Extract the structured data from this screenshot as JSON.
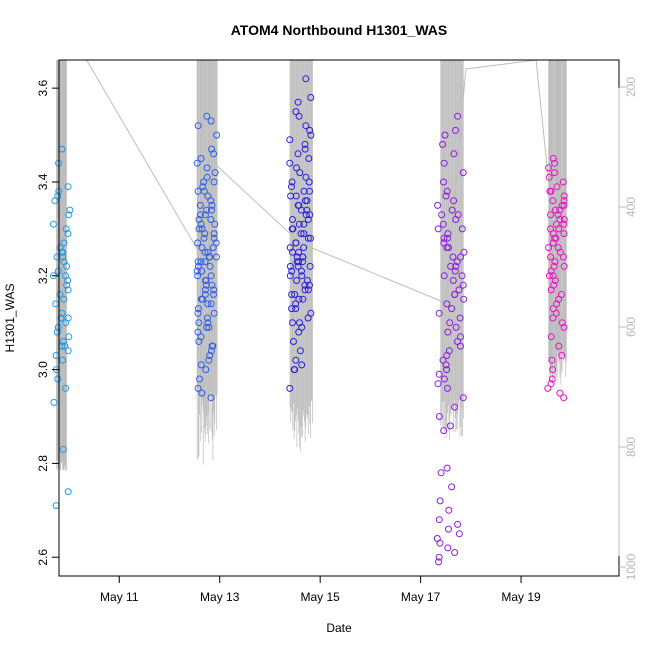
{
  "chart_data": {
    "type": "scatter",
    "title": "ATOM4 Northbound H1301_WAS",
    "xlabel": "Date",
    "ylabel": "H1301_WAS",
    "x_ticks": [
      "May 11",
      "May 13",
      "May 15",
      "May 17",
      "May 19"
    ],
    "x_tick_positions": [
      11,
      13,
      15,
      17,
      19
    ],
    "xlim": [
      9.8,
      20.95
    ],
    "ylim": [
      2.56,
      3.66
    ],
    "y_ticks": [
      "2.6",
      "2.8",
      "3.0",
      "3.2",
      "3.4",
      "3.6"
    ],
    "y_tick_values": [
      2.6,
      2.8,
      3.0,
      3.2,
      3.4,
      3.6
    ],
    "right_axis": {
      "ticks": [
        "200",
        "400",
        "600",
        "800",
        "1000"
      ],
      "tick_values": [
        200,
        400,
        600,
        800,
        1000
      ],
      "lim": [
        1015,
        155
      ],
      "reversed": true,
      "color": "#bbbbbb"
    },
    "grid": false,
    "colors": {
      "cluster1": "#1e9be6",
      "cluster2": "#2f5fe6",
      "cluster3": "#2b1fe0",
      "cluster4": "#8a1ee0",
      "cluster5": "#ee10c8",
      "altitude": "#bdbdbd"
    },
    "series": [
      {
        "color_key": "cluster1",
        "x_center": 9.85,
        "x_spread": 0.17,
        "values": [
          3.47,
          3.44,
          3.39,
          3.38,
          3.37,
          3.36,
          3.34,
          3.33,
          3.31,
          3.3,
          3.29,
          3.27,
          3.26,
          3.25,
          3.25,
          3.24,
          3.24,
          3.23,
          3.22,
          3.21,
          3.2,
          3.2,
          3.19,
          3.18,
          3.17,
          3.16,
          3.15,
          3.14,
          3.12,
          3.11,
          3.11,
          3.1,
          3.09,
          3.08,
          3.07,
          3.06,
          3.05,
          3.05,
          3.04,
          3.03,
          3.02,
          3.0,
          2.98,
          2.96,
          2.93,
          2.83,
          2.74,
          2.71
        ]
      },
      {
        "color_key": "cluster2",
        "x_center": 12.75,
        "x_spread": 0.2,
        "values": [
          3.54,
          3.53,
          3.52,
          3.5,
          3.47,
          3.46,
          3.45,
          3.44,
          3.43,
          3.42,
          3.41,
          3.4,
          3.4,
          3.39,
          3.38,
          3.38,
          3.37,
          3.36,
          3.35,
          3.35,
          3.34,
          3.34,
          3.33,
          3.33,
          3.32,
          3.32,
          3.31,
          3.31,
          3.3,
          3.3,
          3.29,
          3.29,
          3.28,
          3.28,
          3.27,
          3.27,
          3.26,
          3.26,
          3.25,
          3.25,
          3.24,
          3.24,
          3.24,
          3.23,
          3.23,
          3.23,
          3.22,
          3.22,
          3.21,
          3.21,
          3.2,
          3.2,
          3.19,
          3.19,
          3.18,
          3.18,
          3.17,
          3.17,
          3.16,
          3.16,
          3.15,
          3.15,
          3.14,
          3.14,
          3.13,
          3.12,
          3.12,
          3.11,
          3.1,
          3.1,
          3.09,
          3.09,
          3.08,
          3.07,
          3.06,
          3.05,
          3.05,
          3.04,
          3.03,
          3.02,
          3.01,
          3.0,
          2.98,
          2.96,
          2.95,
          2.94
        ]
      },
      {
        "color_key": "cluster3",
        "x_center": 14.6,
        "x_spread": 0.22,
        "values": [
          3.62,
          3.58,
          3.57,
          3.55,
          3.54,
          3.52,
          3.51,
          3.5,
          3.49,
          3.48,
          3.47,
          3.46,
          3.45,
          3.44,
          3.43,
          3.42,
          3.41,
          3.4,
          3.4,
          3.39,
          3.38,
          3.38,
          3.37,
          3.37,
          3.36,
          3.36,
          3.35,
          3.35,
          3.34,
          3.34,
          3.33,
          3.33,
          3.32,
          3.32,
          3.31,
          3.31,
          3.3,
          3.3,
          3.29,
          3.29,
          3.28,
          3.28,
          3.27,
          3.27,
          3.26,
          3.26,
          3.25,
          3.25,
          3.24,
          3.24,
          3.24,
          3.23,
          3.23,
          3.23,
          3.22,
          3.22,
          3.22,
          3.21,
          3.21,
          3.2,
          3.2,
          3.19,
          3.19,
          3.18,
          3.18,
          3.17,
          3.17,
          3.16,
          3.16,
          3.15,
          3.15,
          3.14,
          3.13,
          3.13,
          3.12,
          3.11,
          3.1,
          3.1,
          3.09,
          3.08,
          3.06,
          3.04,
          3.02,
          3.01,
          3.0,
          3.0,
          2.96
        ]
      },
      {
        "color_key": "cluster4",
        "x_center": 17.6,
        "x_spread": 0.27,
        "values": [
          3.54,
          3.51,
          3.5,
          3.48,
          3.46,
          3.44,
          3.42,
          3.4,
          3.38,
          3.37,
          3.36,
          3.35,
          3.34,
          3.33,
          3.33,
          3.32,
          3.31,
          3.3,
          3.3,
          3.29,
          3.28,
          3.28,
          3.27,
          3.26,
          3.26,
          3.25,
          3.24,
          3.24,
          3.23,
          3.22,
          3.22,
          3.21,
          3.2,
          3.2,
          3.19,
          3.18,
          3.17,
          3.16,
          3.16,
          3.15,
          3.14,
          3.13,
          3.12,
          3.11,
          3.1,
          3.09,
          3.08,
          3.07,
          3.06,
          3.05,
          3.04,
          3.03,
          3.02,
          3.01,
          3.0,
          2.99,
          2.98,
          2.97,
          2.96,
          2.94,
          2.92,
          2.9,
          2.88,
          2.87,
          2.79,
          2.78,
          2.75,
          2.72,
          2.7,
          2.68,
          2.67,
          2.66,
          2.65,
          2.64,
          2.63,
          2.62,
          2.61,
          2.6,
          2.59
        ]
      },
      {
        "color_key": "cluster5",
        "x_center": 19.7,
        "x_spread": 0.17,
        "values": [
          3.45,
          3.44,
          3.43,
          3.42,
          3.41,
          3.4,
          3.39,
          3.38,
          3.38,
          3.37,
          3.36,
          3.36,
          3.35,
          3.35,
          3.34,
          3.34,
          3.33,
          3.33,
          3.32,
          3.32,
          3.31,
          3.31,
          3.3,
          3.3,
          3.29,
          3.29,
          3.28,
          3.28,
          3.27,
          3.26,
          3.26,
          3.25,
          3.24,
          3.24,
          3.23,
          3.22,
          3.22,
          3.21,
          3.2,
          3.2,
          3.19,
          3.18,
          3.17,
          3.16,
          3.15,
          3.14,
          3.13,
          3.12,
          3.11,
          3.1,
          3.09,
          3.07,
          3.05,
          3.03,
          3.02,
          3.0,
          2.98,
          2.97,
          2.96,
          2.95,
          2.94
        ]
      }
    ],
    "altitude_clusters": [
      {
        "x_from": 9.75,
        "x_to": 9.95,
        "top": 155,
        "bottom_min": 820,
        "bottom_max": 840
      },
      {
        "x_from": 12.55,
        "x_to": 12.95,
        "top": 155,
        "bottom_min": 700,
        "bottom_max": 830
      },
      {
        "x_from": 14.4,
        "x_to": 14.85,
        "top": 155,
        "bottom_min": 720,
        "bottom_max": 810
      },
      {
        "x_from": 17.4,
        "x_to": 17.85,
        "top": 155,
        "bottom_min": 720,
        "bottom_max": 790
      },
      {
        "x_from": 19.55,
        "x_to": 19.9,
        "top": 155,
        "bottom_min": 640,
        "bottom_max": 700
      }
    ],
    "altitude_track": [
      {
        "x": 10.35,
        "alt": 155
      },
      {
        "x": 12.55,
        "alt": 470
      },
      {
        "x": 12.8,
        "alt": 320
      },
      {
        "x": 14.6,
        "alt": 460
      },
      {
        "x": 17.5,
        "alt": 560
      },
      {
        "x": 17.9,
        "alt": 170
      },
      {
        "x": 19.3,
        "alt": 150
      },
      {
        "x": 19.6,
        "alt": 400
      }
    ]
  }
}
